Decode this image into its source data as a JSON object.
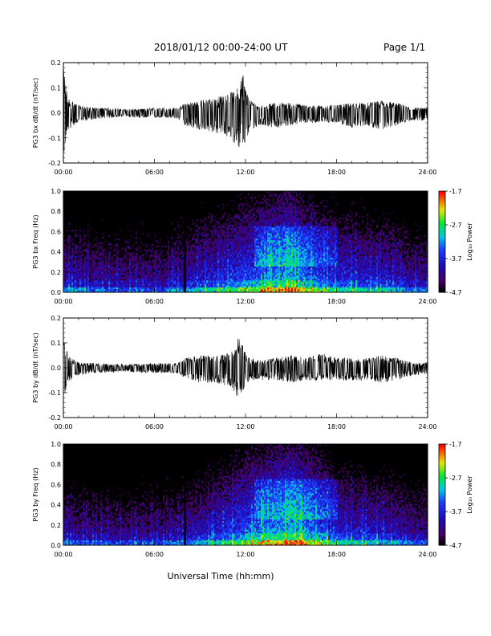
{
  "header": {
    "title": "2018/01/12  00:00-24:00 UT",
    "page": "Page 1/1"
  },
  "xlabel": "Universal Time (hh:mm)",
  "chart_data": [
    {
      "type": "line",
      "ylabel": "PG3 bx dB/dt (nT/sec)",
      "xlim": [
        "00:00",
        "24:00"
      ],
      "xticks": [
        "00:00",
        "06:00",
        "12:00",
        "18:00",
        "24:00"
      ],
      "ylim": [
        -0.2,
        0.2
      ],
      "yticks": [
        "-0.2",
        "-0.1",
        "0.0",
        "0.1",
        "0.2"
      ],
      "envelope": {
        "hours": [
          0,
          0.3,
          1,
          2,
          3,
          4,
          5,
          6,
          7,
          7.6,
          8,
          9,
          10,
          11,
          11.5,
          11.8,
          12,
          12.3,
          13,
          14,
          15,
          16,
          17,
          18,
          19,
          20,
          21,
          22,
          23,
          24
        ],
        "max": [
          0.18,
          0.06,
          0.03,
          0.02,
          0.02,
          0.015,
          0.015,
          0.02,
          0.02,
          0.02,
          0.04,
          0.05,
          0.06,
          0.08,
          0.1,
          0.17,
          0.1,
          0.05,
          0.03,
          0.04,
          0.04,
          0.03,
          0.03,
          0.03,
          0.04,
          0.04,
          0.05,
          0.04,
          0.02,
          0.02
        ],
        "min": [
          -0.18,
          -0.07,
          -0.035,
          -0.025,
          -0.02,
          -0.015,
          -0.02,
          -0.02,
          -0.02,
          -0.025,
          -0.05,
          -0.07,
          -0.08,
          -0.1,
          -0.14,
          -0.15,
          -0.12,
          -0.07,
          -0.05,
          -0.06,
          -0.05,
          -0.04,
          -0.04,
          -0.04,
          -0.06,
          -0.05,
          -0.07,
          -0.05,
          -0.03,
          -0.03
        ]
      }
    },
    {
      "type": "heatmap",
      "ylabel": "PG3 bx Freq (Hz)",
      "xlim": [
        "00:00",
        "24:00"
      ],
      "xticks": [
        "00:00",
        "06:00",
        "12:00",
        "18:00",
        "24:00"
      ],
      "ylim": [
        0.0,
        1.0
      ],
      "yticks": [
        "0.0",
        "0.2",
        "0.4",
        "0.6",
        "0.8",
        "1.0"
      ],
      "colorbar": {
        "label": "Log₁₀ Power",
        "ticks": [
          "-1.7",
          "-2.7",
          "-3.7",
          "-4.7"
        ],
        "range": [
          -4.7,
          -1.7
        ]
      },
      "gap_hour": 8.0,
      "activity": {
        "hours": [
          0,
          1,
          2,
          3,
          4,
          5,
          6,
          7,
          8,
          9,
          10,
          11,
          12,
          13,
          14,
          15,
          16,
          17,
          18,
          19,
          20,
          21,
          22,
          23,
          24
        ],
        "level": [
          0.35,
          0.3,
          0.3,
          0.28,
          0.27,
          0.27,
          0.27,
          0.27,
          0.35,
          0.4,
          0.45,
          0.5,
          0.55,
          0.6,
          0.65,
          0.68,
          0.6,
          0.5,
          0.45,
          0.45,
          0.42,
          0.4,
          0.38,
          0.3,
          0.3
        ]
      }
    },
    {
      "type": "line",
      "ylabel": "PG3 by dB/dt (nT/sec)",
      "xlim": [
        "00:00",
        "24:00"
      ],
      "xticks": [
        "00:00",
        "06:00",
        "12:00",
        "18:00",
        "24:00"
      ],
      "ylim": [
        -0.2,
        0.2
      ],
      "yticks": [
        "-0.2",
        "-0.1",
        "0.0",
        "0.1",
        "0.2"
      ],
      "envelope": {
        "hours": [
          0,
          0.3,
          1,
          2,
          3,
          4,
          5,
          6,
          7,
          7.6,
          8,
          9,
          10,
          11,
          11.5,
          11.8,
          12,
          12.3,
          13,
          14,
          15,
          16,
          17,
          18,
          19,
          20,
          21,
          22,
          23,
          24
        ],
        "max": [
          0.12,
          0.05,
          0.02,
          0.02,
          0.015,
          0.015,
          0.015,
          0.02,
          0.02,
          0.02,
          0.04,
          0.05,
          0.05,
          0.06,
          0.12,
          0.1,
          0.06,
          0.04,
          0.03,
          0.04,
          0.05,
          0.04,
          0.06,
          0.04,
          0.04,
          0.04,
          0.05,
          0.04,
          0.02,
          0.02
        ],
        "min": [
          -0.15,
          -0.06,
          -0.03,
          -0.02,
          -0.02,
          -0.015,
          -0.02,
          -0.02,
          -0.02,
          -0.025,
          -0.04,
          -0.06,
          -0.06,
          -0.08,
          -0.12,
          -0.1,
          -0.07,
          -0.05,
          -0.05,
          -0.05,
          -0.06,
          -0.05,
          -0.05,
          -0.05,
          -0.05,
          -0.05,
          -0.06,
          -0.05,
          -0.03,
          -0.03
        ]
      }
    },
    {
      "type": "heatmap",
      "ylabel": "PG3 by Freq (Hz)",
      "xlim": [
        "00:00",
        "24:00"
      ],
      "xticks": [
        "00:00",
        "06:00",
        "12:00",
        "18:00",
        "24:00"
      ],
      "ylim": [
        0.0,
        1.0
      ],
      "yticks": [
        "0.0",
        "0.2",
        "0.4",
        "0.6",
        "0.8",
        "1.0"
      ],
      "colorbar": {
        "label": "Log₁₀ Power",
        "ticks": [
          "-1.7",
          "-2.7",
          "-3.7",
          "-4.7"
        ],
        "range": [
          -4.7,
          -1.7
        ]
      },
      "gap_hour": 8.0,
      "activity": {
        "hours": [
          0,
          1,
          2,
          3,
          4,
          5,
          6,
          7,
          8,
          9,
          10,
          11,
          12,
          13,
          14,
          15,
          16,
          17,
          18,
          19,
          20,
          21,
          22,
          23,
          24
        ],
        "level": [
          0.3,
          0.27,
          0.25,
          0.25,
          0.24,
          0.24,
          0.25,
          0.25,
          0.32,
          0.38,
          0.42,
          0.5,
          0.58,
          0.62,
          0.68,
          0.72,
          0.65,
          0.55,
          0.45,
          0.42,
          0.4,
          0.38,
          0.35,
          0.3,
          0.3
        ]
      }
    }
  ]
}
